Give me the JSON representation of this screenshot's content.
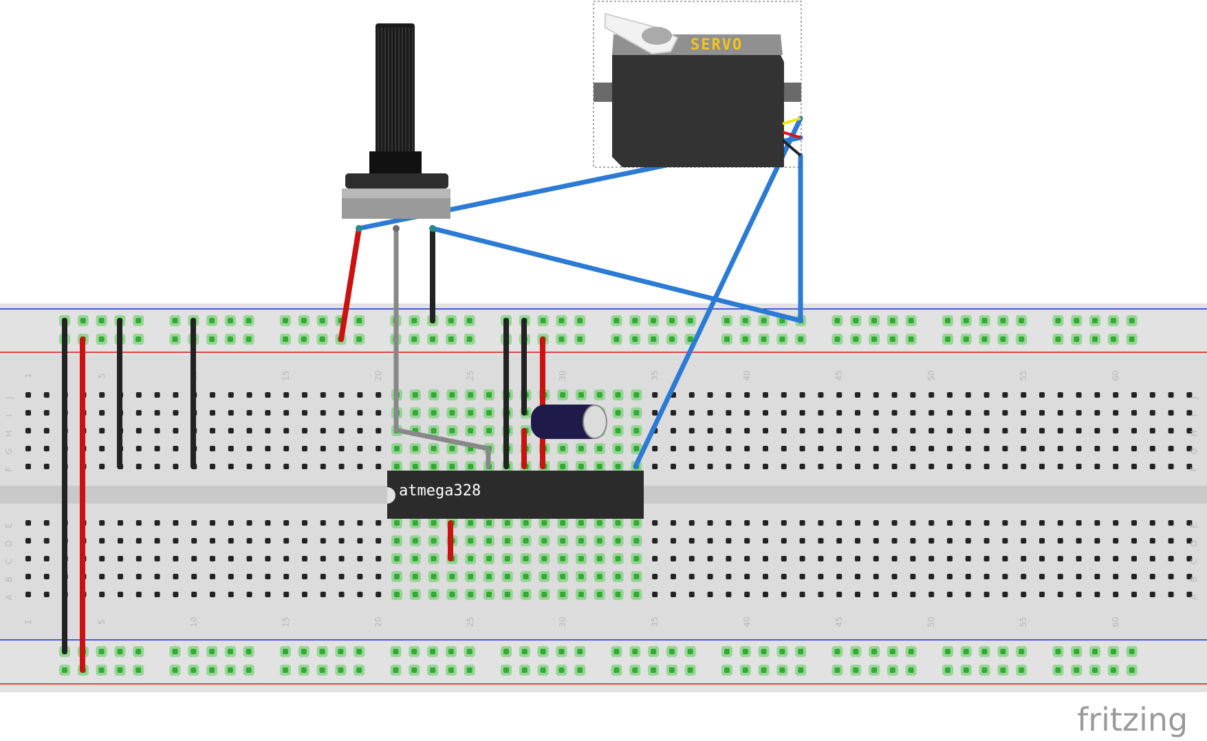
{
  "app": {
    "name": "fritzing",
    "view": "breadboard"
  },
  "breadboard": {
    "columns": 64,
    "top_row_labels": [
      "J",
      "I",
      "H",
      "G",
      "F"
    ],
    "bottom_row_labels": [
      "E",
      "D",
      "C",
      "B",
      "A"
    ],
    "column_number_labels": [
      "1",
      "5",
      "10",
      "15",
      "20",
      "25",
      "30",
      "35",
      "40",
      "45",
      "50",
      "55",
      "60"
    ],
    "colors": {
      "body": "#d9d9d9",
      "center_gap": "#c8c8c8",
      "rail_red": "#e01010",
      "rail_blue": "#1030e0",
      "hole": "#222222",
      "connected_hole": "#33aa33"
    }
  },
  "components": {
    "chip": {
      "label": "atmega328",
      "pins": 28
    },
    "servo": {
      "label": "SERVO"
    },
    "potentiometer": {
      "type": "rotary potentiometer"
    },
    "capacitor": {
      "type": "electrolytic capacitor"
    }
  },
  "wire_colors": {
    "black": "#222222",
    "red": "#cc1111",
    "gray": "#888888",
    "blue": "#2b7ad6"
  },
  "logo": {
    "text": "fritzing"
  }
}
